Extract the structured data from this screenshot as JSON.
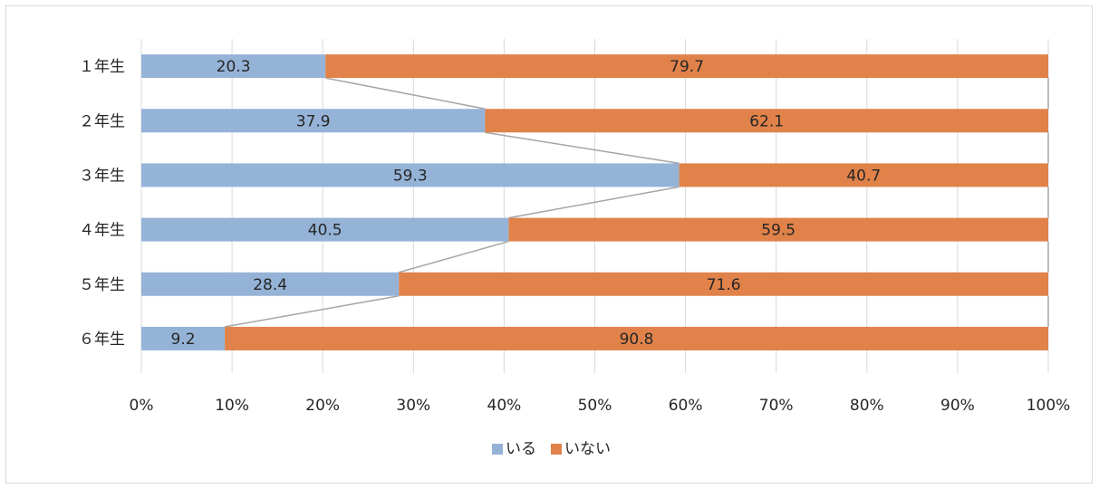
{
  "chart_data": {
    "type": "bar",
    "orientation": "horizontal",
    "stacked": "percent",
    "categories": [
      "１年生",
      "２年生",
      "３年生",
      "４年生",
      "５年生",
      "６年生"
    ],
    "series": [
      {
        "name": "いる",
        "values": [
          20.3,
          37.9,
          59.3,
          40.5,
          28.4,
          9.2
        ],
        "color": "#95b3d7"
      },
      {
        "name": "いない",
        "values": [
          79.7,
          62.1,
          40.7,
          59.5,
          71.6,
          90.8
        ],
        "color": "#e0824a"
      }
    ],
    "xlim": [
      0,
      100
    ],
    "xticks": [
      "0%",
      "10%",
      "20%",
      "30%",
      "40%",
      "50%",
      "60%",
      "70%",
      "80%",
      "90%",
      "100%"
    ],
    "grid": true,
    "series_lines": true,
    "legend_position": "bottom"
  }
}
